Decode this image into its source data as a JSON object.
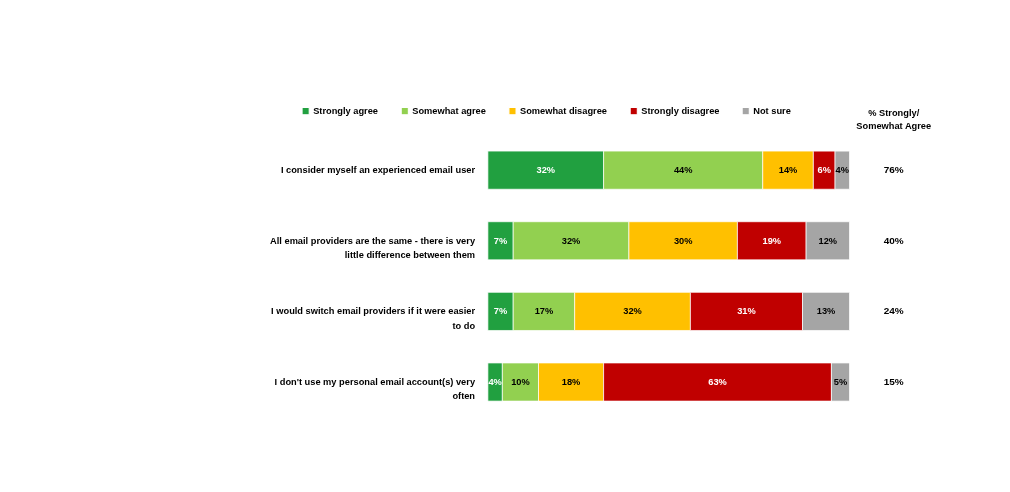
{
  "chart_data": {
    "type": "bar",
    "orientation": "horizontal",
    "stacked": true,
    "legend": "top",
    "grid": false,
    "categories": [
      "I consider myself an experienced email user",
      "All email providers are the same - there is very little difference between them",
      "I would switch email providers if it were easier to do",
      "I don't use my personal email account(s) very often"
    ],
    "series": [
      {
        "name": "Strongly agree",
        "color": "#21a040",
        "values": [
          32,
          7,
          7,
          4
        ],
        "value_labels": [
          "32%",
          "7%",
          "7%",
          "4%"
        ]
      },
      {
        "name": "Somewhat agree",
        "color": "#92d050",
        "values": [
          44,
          32,
          17,
          10
        ],
        "value_labels": [
          "44%",
          "32%",
          "17%",
          "10%"
        ]
      },
      {
        "name": "Somewhat disagree",
        "color": "#ffc000",
        "values": [
          14,
          30,
          32,
          18
        ],
        "value_labels": [
          "14%",
          "30%",
          "32%",
          "18%"
        ]
      },
      {
        "name": "Strongly disagree",
        "color": "#c00000",
        "values": [
          6,
          19,
          31,
          63
        ],
        "value_labels": [
          "6%",
          "19%",
          "31%",
          "63%"
        ]
      },
      {
        "name": "Not sure",
        "color": "#a5a5a5",
        "values": [
          4,
          12,
          13,
          5
        ],
        "value_labels": [
          "4%",
          "12%",
          "13%",
          "5%"
        ]
      }
    ],
    "annotations": [
      "% Strongly/ Somewhat Agree",
      "76%",
      "40%",
      "24%",
      "15%"
    ]
  }
}
